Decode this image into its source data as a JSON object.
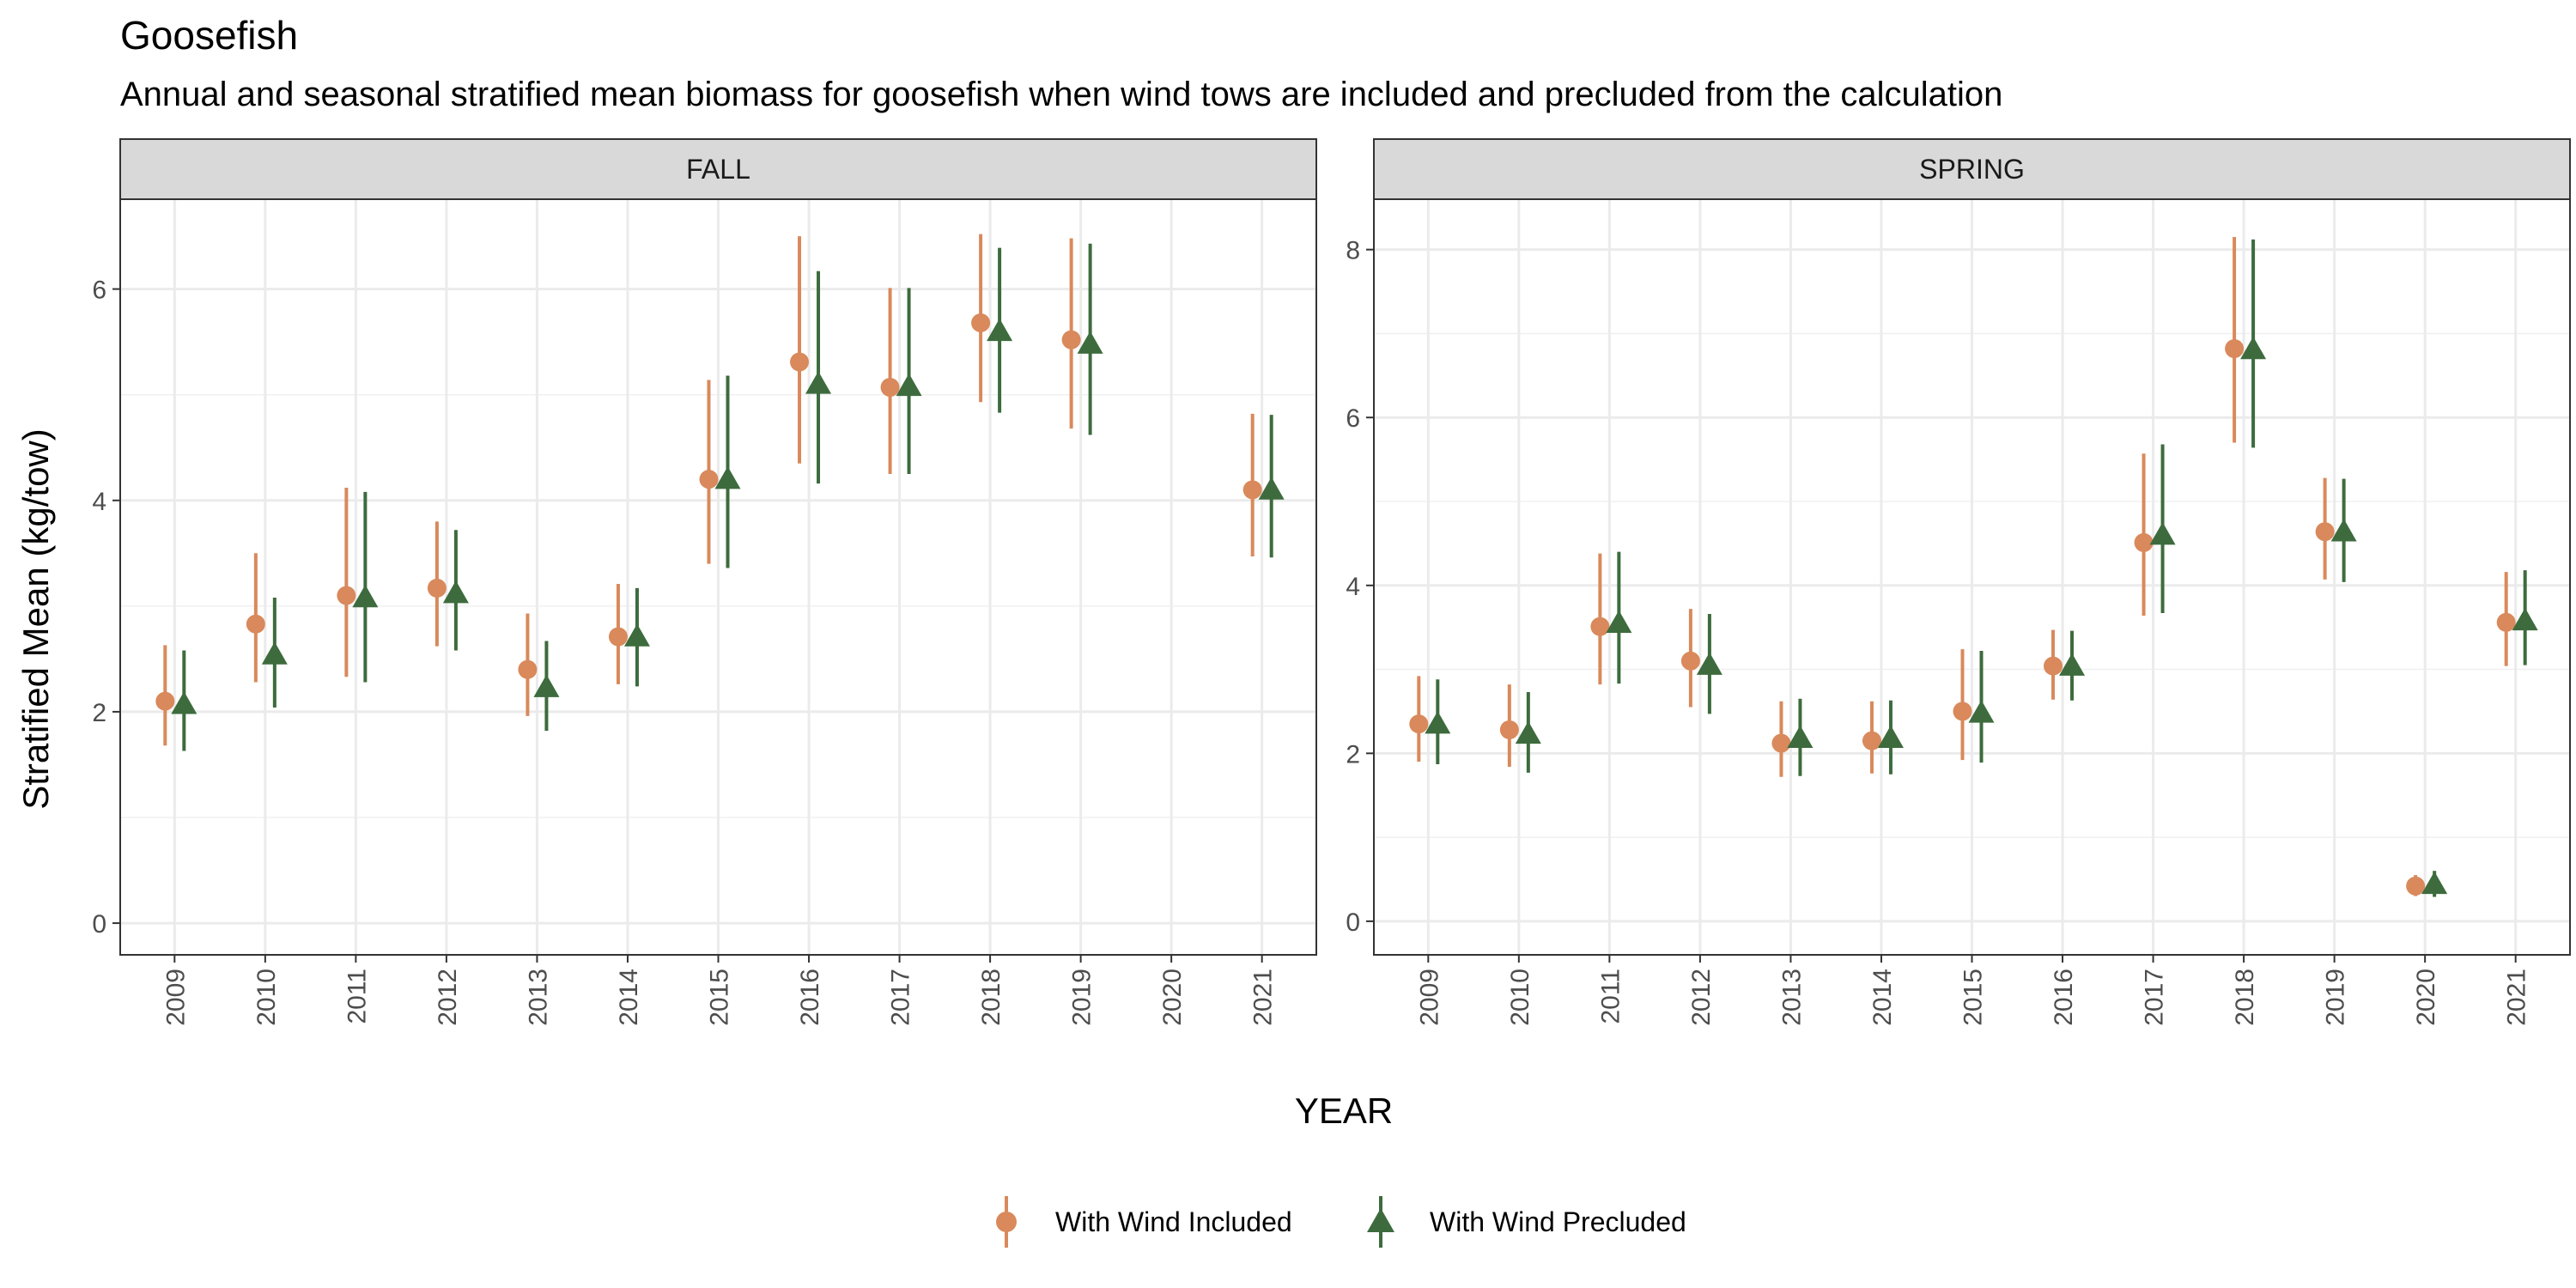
{
  "chart_data": {
    "type": "scatter",
    "title": "Goosefish",
    "subtitle": "Annual and seasonal stratified mean biomass for goosefish when wind tows are included and precluded from the calculation",
    "xlabel": "YEAR",
    "ylabel": "Stratified Mean (kg/tow)",
    "categories": [
      "2009",
      "2010",
      "2011",
      "2012",
      "2013",
      "2014",
      "2015",
      "2016",
      "2017",
      "2018",
      "2019",
      "2020",
      "2021"
    ],
    "legend": {
      "placement": "bottom",
      "entries": [
        {
          "name": "With Wind Included",
          "shape": "circle",
          "color": "#d9895b"
        },
        {
          "name": "With Wind Precluded",
          "shape": "triangle",
          "color": "#3d6b3d"
        }
      ]
    },
    "grid": true,
    "panels": [
      {
        "label": "FALL",
        "ylim": [
          -0.3,
          6.85
        ],
        "yticks": [
          0,
          2,
          4,
          6
        ],
        "series": [
          {
            "name": "With Wind Included",
            "values": [
              2.1,
              2.83,
              3.1,
              3.17,
              2.4,
              2.71,
              4.2,
              5.31,
              5.07,
              5.68,
              5.52,
              null,
              4.1
            ],
            "lower": [
              1.68,
              2.28,
              2.33,
              2.62,
              1.96,
              2.26,
              3.4,
              4.35,
              4.25,
              4.93,
              4.68,
              null,
              3.47
            ],
            "upper": [
              2.63,
              3.5,
              4.12,
              3.8,
              2.93,
              3.21,
              5.14,
              6.5,
              6.01,
              6.52,
              6.48,
              null,
              4.82
            ]
          },
          {
            "name": "With Wind Precluded",
            "values": [
              2.07,
              2.54,
              3.08,
              3.12,
              2.23,
              2.71,
              4.2,
              5.1,
              5.08,
              5.6,
              5.48,
              null,
              4.1
            ],
            "lower": [
              1.63,
              2.04,
              2.28,
              2.58,
              1.82,
              2.24,
              3.36,
              4.16,
              4.25,
              4.83,
              4.62,
              null,
              3.46
            ],
            "upper": [
              2.58,
              3.08,
              4.08,
              3.72,
              2.67,
              3.17,
              5.18,
              6.17,
              6.01,
              6.39,
              6.43,
              null,
              4.81
            ]
          }
        ]
      },
      {
        "label": "SPRING",
        "ylim": [
          -0.4,
          8.6
        ],
        "yticks": [
          0,
          2,
          4,
          6,
          8
        ],
        "series": [
          {
            "name": "With Wind Included",
            "values": [
              2.35,
              2.28,
              3.51,
              3.1,
              2.12,
              2.15,
              2.5,
              3.04,
              4.51,
              6.82,
              4.64,
              0.42,
              3.56
            ],
            "lower": [
              1.9,
              1.84,
              2.82,
              2.55,
              1.72,
              1.76,
              1.92,
              2.64,
              3.64,
              5.7,
              4.07,
              0.3,
              3.04
            ],
            "upper": [
              2.92,
              2.82,
              4.38,
              3.72,
              2.62,
              2.62,
              3.24,
              3.47,
              5.57,
              8.15,
              5.28,
              0.55,
              4.16
            ]
          },
          {
            "name": "With Wind Precluded",
            "values": [
              2.35,
              2.23,
              3.55,
              3.05,
              2.18,
              2.18,
              2.48,
              3.04,
              4.6,
              6.81,
              4.64,
              0.44,
              3.58
            ],
            "lower": [
              1.87,
              1.77,
              2.83,
              2.47,
              1.73,
              1.75,
              1.89,
              2.63,
              3.67,
              5.64,
              4.04,
              0.29,
              3.05
            ],
            "upper": [
              2.88,
              2.73,
              4.4,
              3.66,
              2.65,
              2.63,
              3.22,
              3.46,
              5.68,
              8.12,
              5.27,
              0.6,
              4.18
            ]
          }
        ]
      }
    ]
  }
}
